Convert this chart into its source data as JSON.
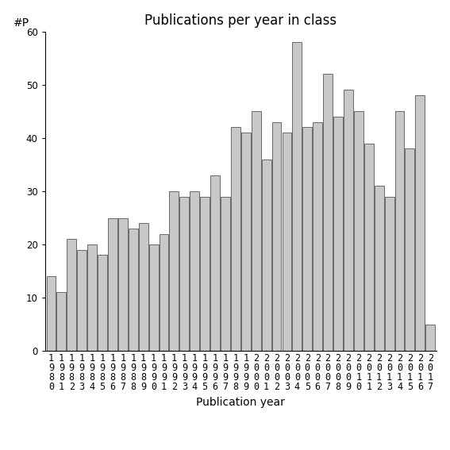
{
  "title": "Publications per year in class",
  "xlabel": "Publication year",
  "ylabel": "#P",
  "years": [
    1980,
    1981,
    1982,
    1983,
    1984,
    1985,
    1986,
    1987,
    1988,
    1989,
    1990,
    1991,
    1992,
    1993,
    1994,
    1995,
    1996,
    1997,
    1998,
    1999,
    2000,
    2001,
    2002,
    2003,
    2004,
    2005,
    2006,
    2007,
    2008,
    2009,
    2010,
    2011,
    2012,
    2013,
    2014,
    2015,
    2016,
    2017
  ],
  "values": [
    14,
    11,
    21,
    19,
    20,
    18,
    25,
    25,
    23,
    24,
    20,
    22,
    30,
    29,
    30,
    29,
    33,
    29,
    42,
    41,
    45,
    36,
    43,
    41,
    58,
    42,
    43,
    52,
    44,
    49,
    45,
    39,
    31,
    29,
    45,
    38,
    48,
    5
  ],
  "bar_color": "#c8c8c8",
  "bar_edgecolor": "#555555",
  "ylim": [
    0,
    60
  ],
  "yticks": [
    0,
    10,
    20,
    30,
    40,
    50,
    60
  ],
  "bg_color": "#ffffff",
  "title_fontsize": 12,
  "xlabel_fontsize": 10,
  "ylabel_fontsize": 10,
  "tick_fontsize": 8.5
}
